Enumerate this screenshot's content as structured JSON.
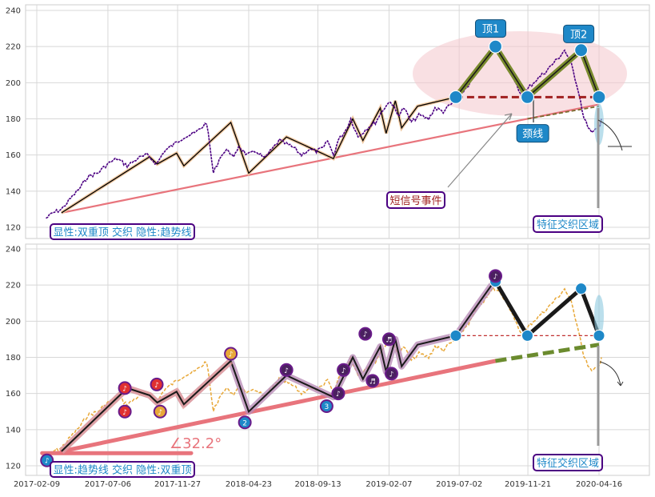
{
  "chart_data": [
    {
      "type": "line",
      "title": "",
      "ylim": [
        115,
        243
      ],
      "yticks": [
        120,
        140,
        160,
        180,
        200,
        220,
        240
      ],
      "grid": true,
      "background": "#ffffff",
      "series": [
        {
          "style": "price",
          "color": "#4B0082",
          "x": [
            "2017-02-28",
            "2017-03-15",
            "2017-04-01",
            "2017-04-20",
            "2017-05-10",
            "2017-05-25",
            "2017-06-15",
            "2017-07-05",
            "2017-07-25",
            "2017-08-15",
            "2017-09-05",
            "2017-09-25",
            "2017-10-15",
            "2017-10-30",
            "2017-11-20",
            "2017-12-10",
            "2018-01-01",
            "2018-01-15",
            "2018-01-26",
            "2018-02-09",
            "2018-02-25",
            "2018-03-12",
            "2018-03-23",
            "2018-04-02",
            "2018-04-20",
            "2018-05-10",
            "2018-05-25",
            "2018-06-10",
            "2018-06-25",
            "2018-07-10",
            "2018-07-25",
            "2018-08-10",
            "2018-08-25",
            "2018-09-10",
            "2018-09-25",
            "2018-10-03",
            "2018-10-15",
            "2018-10-25",
            "2018-11-10",
            "2018-11-20",
            "2018-12-05",
            "2018-12-24",
            "2019-01-10",
            "2019-01-25",
            "2019-02-10",
            "2019-02-25",
            "2019-03-10",
            "2019-03-25",
            "2019-04-10",
            "2019-04-30",
            "2019-05-13",
            "2019-05-30",
            "2019-06-15",
            "2019-06-30",
            "2019-07-10",
            "2019-07-25",
            "2019-08-10",
            "2019-08-25",
            "2019-09-10",
            "2019-09-25",
            "2019-10-10",
            "2019-10-25",
            "2019-11-10",
            "2019-11-25",
            "2019-12-10",
            "2019-12-27",
            "2020-01-10",
            "2020-01-24",
            "2020-02-05",
            "2020-02-19",
            "2020-03-05",
            "2020-03-16",
            "2020-04-01",
            "2020-04-16",
            "2020-04-21"
          ],
          "y": [
            125,
            128,
            130,
            136,
            142,
            148,
            150,
            155,
            158,
            154,
            158,
            160,
            155,
            162,
            166,
            170,
            172,
            175,
            178,
            150,
            160,
            163,
            158,
            165,
            160,
            162,
            158,
            163,
            168,
            166,
            164,
            160,
            163,
            162,
            164,
            168,
            160,
            168,
            174,
            180,
            170,
            175,
            178,
            185,
            190,
            182,
            186,
            178,
            182,
            180,
            186,
            184,
            188,
            190,
            195,
            200,
            208,
            212,
            218,
            216,
            210,
            200,
            192,
            198,
            202,
            206,
            210,
            214,
            218,
            210,
            195,
            180,
            172,
            175,
            180
          ]
        },
        {
          "style": "trend",
          "color": "#E8747C",
          "x": [
            "2017-04-01",
            "2020-04-16"
          ],
          "y": [
            128,
            188
          ]
        },
        {
          "style": "black-line",
          "color": "#000000",
          "x": [
            "2017-04-01",
            "2017-09-30",
            "2017-10-16",
            "2017-11-25",
            "2017-12-10",
            "2018-03-17",
            "2018-04-23",
            "2018-07-10",
            "2018-10-15",
            "2018-11-24",
            "2018-12-15",
            "2019-01-20",
            "2019-02-01",
            "2019-02-20",
            "2019-03-05",
            "2019-04-07",
            "2019-06-25"
          ],
          "y": [
            128,
            159,
            155,
            161,
            154,
            178,
            150,
            170,
            158,
            180,
            168,
            186,
            172,
            190,
            175,
            187,
            192
          ]
        }
      ],
      "pattern_lines": [
        {
          "style": "olive",
          "x": [
            "2019-06-25",
            "2019-09-15",
            "2019-11-20",
            "2020-03-10",
            "2020-04-16"
          ],
          "y": [
            192,
            220,
            192,
            218,
            192
          ]
        },
        {
          "style": "neckline",
          "x": [
            "2019-06-25",
            "2020-04-16"
          ],
          "y": [
            192,
            192
          ]
        },
        {
          "style": "olive-dash",
          "x": [
            "2019-11-20",
            "2020-04-16"
          ],
          "y": [
            180,
            187
          ]
        }
      ],
      "points": [
        {
          "x": "2019-06-25",
          "y": 192
        },
        {
          "x": "2019-09-15",
          "y": 220
        },
        {
          "x": "2019-11-20",
          "y": 192
        },
        {
          "x": "2020-03-10",
          "y": 218
        },
        {
          "x": "2020-04-16",
          "y": 192
        }
      ],
      "labels": [
        {
          "text": "顶1",
          "x": "2019-09-05",
          "y": 230
        },
        {
          "text": "顶2",
          "x": "2020-03-05",
          "y": 227
        },
        {
          "text": "颈线",
          "x": "2019-12-01",
          "y": 172
        }
      ],
      "annotations": {
        "short_signal": "短信号事件",
        "feature_zone": "特征交织区域",
        "info": "显性:双重顶 交织 隐性:趋势线"
      }
    },
    {
      "type": "line",
      "title": "",
      "ylim": [
        115,
        243
      ],
      "yticks": [
        120,
        140,
        160,
        180,
        200,
        220,
        240
      ],
      "grid": true,
      "xticks": [
        "2017-02-09",
        "2017-07-06",
        "2017-11-27",
        "2018-04-23",
        "2018-09-13",
        "2019-02-07",
        "2019-07-02",
        "2019-11-21",
        "2020-04-16"
      ],
      "series": [
        {
          "style": "price",
          "color": "#E8A838",
          "x": [
            "2017-02-28",
            "2017-03-15",
            "2017-04-01",
            "2017-04-20",
            "2017-05-10",
            "2017-05-25",
            "2017-06-15",
            "2017-07-05",
            "2017-07-25",
            "2017-08-15",
            "2017-09-05",
            "2017-09-25",
            "2017-10-15",
            "2017-10-30",
            "2017-11-20",
            "2017-12-10",
            "2018-01-01",
            "2018-01-15",
            "2018-01-26",
            "2018-02-09",
            "2018-02-25",
            "2018-03-12",
            "2018-03-23",
            "2018-04-02",
            "2018-04-20",
            "2018-05-10",
            "2018-05-25",
            "2018-06-10",
            "2018-06-25",
            "2018-07-10",
            "2018-07-25",
            "2018-08-10",
            "2018-08-25",
            "2018-09-10",
            "2018-09-25",
            "2018-10-03",
            "2018-10-15",
            "2018-10-25",
            "2018-11-10",
            "2018-11-20",
            "2018-12-05",
            "2018-12-24",
            "2019-01-10",
            "2019-01-25",
            "2019-02-10",
            "2019-02-25",
            "2019-03-10",
            "2019-03-25",
            "2019-04-10",
            "2019-04-30",
            "2019-05-13",
            "2019-05-30",
            "2019-06-15",
            "2019-06-30",
            "2019-07-10",
            "2019-07-25",
            "2019-08-10",
            "2019-08-25",
            "2019-09-10",
            "2019-09-25",
            "2019-10-10",
            "2019-10-25",
            "2019-11-10",
            "2019-11-25",
            "2019-12-10",
            "2019-12-27",
            "2020-01-10",
            "2020-01-24",
            "2020-02-05",
            "2020-02-19",
            "2020-03-05",
            "2020-03-16",
            "2020-04-01",
            "2020-04-16",
            "2020-04-21"
          ],
          "y": [
            125,
            128,
            130,
            136,
            142,
            148,
            150,
            155,
            158,
            154,
            158,
            160,
            155,
            162,
            166,
            170,
            172,
            175,
            178,
            150,
            160,
            163,
            158,
            165,
            160,
            162,
            158,
            163,
            168,
            166,
            164,
            160,
            163,
            162,
            164,
            168,
            160,
            168,
            174,
            180,
            170,
            175,
            178,
            185,
            190,
            182,
            186,
            178,
            182,
            180,
            186,
            184,
            188,
            190,
            195,
            200,
            208,
            212,
            218,
            216,
            210,
            200,
            192,
            198,
            202,
            206,
            210,
            214,
            218,
            210,
            195,
            180,
            172,
            175,
            180
          ]
        }
      ],
      "pattern_lines": [
        {
          "style": "trend-thick",
          "x": [
            "2017-04-01",
            "2019-09-15"
          ],
          "y": [
            128,
            178
          ]
        },
        {
          "style": "trend-dash",
          "x": [
            "2019-09-15",
            "2020-04-16"
          ],
          "y": [
            178,
            187
          ]
        },
        {
          "style": "trend-low",
          "x": [
            "2017-02-20",
            "2017-12-25"
          ],
          "y": [
            127,
            127
          ]
        },
        {
          "style": "purple-zigzag",
          "x": [
            "2017-04-01",
            "2017-08-15",
            "2017-09-30",
            "2017-10-16",
            "2017-11-25",
            "2017-12-10",
            "2018-03-17",
            "2018-04-23",
            "2018-07-10",
            "2018-10-15",
            "2018-11-24",
            "2018-12-15",
            "2019-01-20",
            "2019-02-01",
            "2019-02-20",
            "2019-03-05",
            "2019-04-07",
            "2019-06-25",
            "2019-09-15"
          ],
          "y": [
            128,
            163,
            159,
            155,
            161,
            154,
            178,
            150,
            170,
            158,
            180,
            168,
            186,
            172,
            190,
            175,
            187,
            192,
            223
          ]
        },
        {
          "style": "black-pattern",
          "x": [
            "2019-09-15",
            "2019-11-20",
            "2020-03-10",
            "2020-04-16"
          ],
          "y": [
            222,
            192,
            218,
            192
          ]
        },
        {
          "style": "red-dash",
          "x": [
            "2019-06-25",
            "2020-04-16"
          ],
          "y": [
            192,
            192
          ]
        }
      ],
      "points": [
        {
          "x": "2017-03-02",
          "y": 123,
          "note": "♪",
          "fill": "#1E88C8"
        },
        {
          "x": "2017-08-10",
          "y": 163,
          "note": "♪",
          "fill": "#E03030"
        },
        {
          "x": "2017-08-10",
          "y": 150,
          "note": "♪",
          "fill": "#E03030"
        },
        {
          "x": "2017-10-15",
          "y": 165,
          "note": "♪",
          "fill": "#E03030"
        },
        {
          "x": "2017-10-22",
          "y": 150,
          "note": "♪",
          "fill": "#E8A838"
        },
        {
          "x": "2018-03-17",
          "y": 182,
          "note": "♪",
          "fill": "#E8A838"
        },
        {
          "x": "2018-04-15",
          "y": 144,
          "note": "2",
          "fill": "#1E88C8"
        },
        {
          "x": "2018-07-10",
          "y": 173,
          "note": "♪",
          "fill": "#4B2060"
        },
        {
          "x": "2018-10-01",
          "y": 153,
          "note": "3",
          "fill": "#1E88C8"
        },
        {
          "x": "2018-10-25",
          "y": 160,
          "note": "♪",
          "fill": "#4B2060"
        },
        {
          "x": "2018-11-05",
          "y": 173,
          "note": "♪",
          "fill": "#4B2060"
        },
        {
          "x": "2018-12-20",
          "y": 193,
          "note": "♪",
          "fill": "#4B2060"
        },
        {
          "x": "2019-01-04",
          "y": 167,
          "note": "♬",
          "fill": "#4B2060"
        },
        {
          "x": "2019-02-07",
          "y": 190,
          "note": "♬",
          "fill": "#4B2060"
        },
        {
          "x": "2019-02-12",
          "y": 171,
          "note": "♪",
          "fill": "#4B2060"
        },
        {
          "x": "2019-09-15",
          "y": 225,
          "note": "♪",
          "fill": "#4B2060"
        }
      ],
      "blue_points": [
        {
          "x": "2019-06-25",
          "y": 192
        },
        {
          "x": "2019-09-15",
          "y": 222
        },
        {
          "x": "2019-11-20",
          "y": 192
        },
        {
          "x": "2020-03-10",
          "y": 218
        },
        {
          "x": "2020-04-16",
          "y": 192
        }
      ],
      "angle_label": "∠32.2°",
      "annotations": {
        "feature_zone": "特征交织区域",
        "info": "显性:趋势线 交织 隐性:双重顶"
      }
    }
  ],
  "colors": {
    "accent_blue": "#1E88C8",
    "olive": "#7A8B2E",
    "trend_pink": "#E8747C",
    "box_border": "#4B0082",
    "box_text": "#1E88C8"
  }
}
